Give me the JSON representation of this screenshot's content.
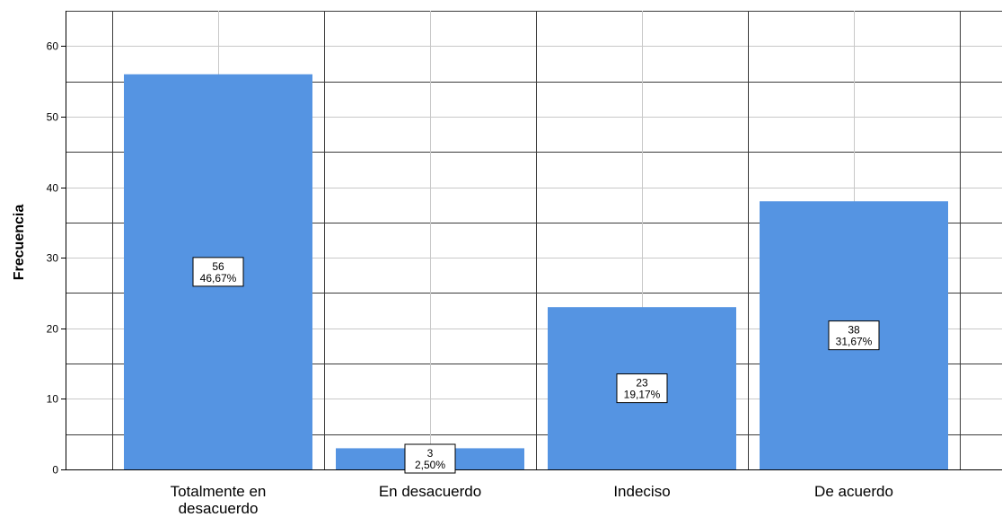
{
  "chart_data": {
    "type": "bar",
    "categories": [
      "Totalmente en desacuerdo",
      "En desacuerdo",
      "Indeciso",
      "De acuerdo"
    ],
    "category_lines": [
      [
        "Totalmente en",
        "desacuerdo"
      ],
      [
        "En desacuerdo"
      ],
      [
        "Indeciso"
      ],
      [
        "De acuerdo"
      ]
    ],
    "values": [
      56,
      3,
      23,
      38
    ],
    "percent_labels": [
      "46,67%",
      "2,50%",
      "19,17%",
      "31,67%"
    ],
    "xlabel": "",
    "ylabel": "Frecuencia",
    "ylim": [
      0,
      65
    ],
    "yticks": [
      0,
      10,
      20,
      30,
      40,
      50,
      60
    ],
    "bar_color": "#5594e2",
    "grid": true
  }
}
